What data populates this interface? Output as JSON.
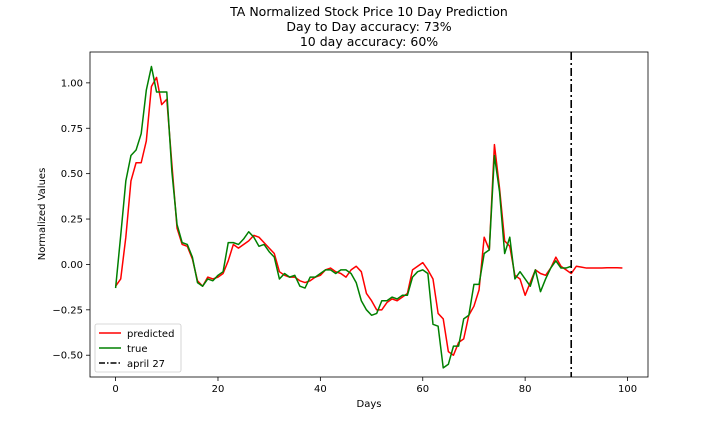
{
  "chart_data": {
    "type": "line",
    "title_lines": [
      "TA Normalized Stock Price 10 Day Prediction",
      "Day to Day accuracy: 73%",
      "10 day accuracy: 60%"
    ],
    "xlabel": "Days",
    "ylabel": "Normalized Values",
    "xlim": [
      -5,
      104
    ],
    "ylim": [
      -0.62,
      1.17
    ],
    "xticks": [
      0,
      20,
      40,
      60,
      80,
      100
    ],
    "yticks": [
      -0.5,
      -0.25,
      0.0,
      0.25,
      0.5,
      0.75,
      1.0
    ],
    "xtick_labels": [
      "0",
      "20",
      "40",
      "60",
      "80",
      "100"
    ],
    "ytick_labels": [
      "−0.50",
      "−0.25",
      "0.00",
      "0.25",
      "0.50",
      "0.75",
      "1.00"
    ],
    "grid": false,
    "legend_position": "lower-left",
    "series": [
      {
        "name": "predicted",
        "color": "#ff0000",
        "x": [
          0,
          1,
          2,
          3,
          4,
          5,
          6,
          7,
          8,
          9,
          10,
          11,
          12,
          13,
          14,
          15,
          16,
          17,
          18,
          19,
          20,
          21,
          22,
          23,
          24,
          25,
          26,
          27,
          28,
          29,
          30,
          31,
          32,
          33,
          34,
          35,
          36,
          37,
          38,
          39,
          40,
          41,
          42,
          43,
          44,
          45,
          46,
          47,
          48,
          49,
          50,
          51,
          52,
          53,
          54,
          55,
          56,
          57,
          58,
          59,
          60,
          61,
          62,
          63,
          64,
          65,
          66,
          67,
          68,
          69,
          70,
          71,
          72,
          73,
          74,
          75,
          76,
          77,
          78,
          79,
          80,
          81,
          82,
          83,
          84,
          85,
          86,
          87,
          88,
          89,
          90,
          91,
          92,
          93,
          94,
          95,
          96,
          97,
          98,
          99
        ],
        "values": [
          -0.12,
          -0.08,
          0.15,
          0.46,
          0.56,
          0.56,
          0.68,
          0.98,
          1.03,
          0.88,
          0.91,
          0.55,
          0.2,
          0.11,
          0.1,
          0.03,
          -0.09,
          -0.12,
          -0.07,
          -0.08,
          -0.07,
          -0.05,
          0.02,
          0.11,
          0.09,
          0.11,
          0.13,
          0.16,
          0.15,
          0.12,
          0.09,
          0.06,
          -0.04,
          -0.06,
          -0.07,
          -0.07,
          -0.09,
          -0.1,
          -0.09,
          -0.07,
          -0.06,
          -0.03,
          -0.02,
          -0.04,
          -0.05,
          -0.07,
          -0.03,
          -0.01,
          -0.04,
          -0.16,
          -0.2,
          -0.25,
          -0.25,
          -0.21,
          -0.19,
          -0.2,
          -0.18,
          -0.16,
          -0.03,
          -0.01,
          0.01,
          -0.03,
          -0.08,
          -0.27,
          -0.3,
          -0.48,
          -0.5,
          -0.43,
          -0.41,
          -0.28,
          -0.23,
          -0.14,
          0.15,
          0.08,
          0.66,
          0.42,
          0.13,
          0.1,
          -0.06,
          -0.08,
          -0.17,
          -0.1,
          -0.03,
          -0.05,
          -0.06,
          -0.02,
          0.04,
          -0.01,
          -0.03,
          -0.05,
          -0.01,
          -0.015,
          -0.02,
          -0.02,
          -0.02,
          -0.02,
          -0.018,
          -0.018,
          -0.018,
          -0.02
        ]
      },
      {
        "name": "true",
        "color": "#008000",
        "x": [
          0,
          1,
          2,
          3,
          4,
          5,
          6,
          7,
          8,
          9,
          10,
          11,
          12,
          13,
          14,
          15,
          16,
          17,
          18,
          19,
          20,
          21,
          22,
          23,
          24,
          25,
          26,
          27,
          28,
          29,
          30,
          31,
          32,
          33,
          34,
          35,
          36,
          37,
          38,
          39,
          40,
          41,
          42,
          43,
          44,
          45,
          46,
          47,
          48,
          49,
          50,
          51,
          52,
          53,
          54,
          55,
          56,
          57,
          58,
          59,
          60,
          61,
          62,
          63,
          64,
          65,
          66,
          67,
          68,
          69,
          70,
          71,
          72,
          73,
          74,
          75,
          76,
          77,
          78,
          79,
          80,
          81,
          82,
          83,
          84,
          85,
          86,
          87,
          88,
          89
        ],
        "values": [
          -0.13,
          0.16,
          0.46,
          0.6,
          0.63,
          0.72,
          0.96,
          1.09,
          0.95,
          0.95,
          0.95,
          0.51,
          0.22,
          0.12,
          0.11,
          0.04,
          -0.1,
          -0.12,
          -0.08,
          -0.09,
          -0.06,
          -0.04,
          0.12,
          0.12,
          0.11,
          0.14,
          0.18,
          0.15,
          0.1,
          0.11,
          0.07,
          0.04,
          -0.08,
          -0.05,
          -0.07,
          -0.06,
          -0.12,
          -0.13,
          -0.07,
          -0.07,
          -0.05,
          -0.03,
          -0.03,
          -0.05,
          -0.03,
          -0.03,
          -0.05,
          -0.1,
          -0.2,
          -0.25,
          -0.28,
          -0.27,
          -0.2,
          -0.2,
          -0.18,
          -0.19,
          -0.17,
          -0.17,
          -0.07,
          -0.04,
          -0.03,
          -0.05,
          -0.33,
          -0.34,
          -0.57,
          -0.55,
          -0.45,
          -0.45,
          -0.3,
          -0.28,
          -0.11,
          -0.11,
          0.06,
          0.08,
          0.6,
          0.4,
          0.06,
          0.15,
          -0.08,
          -0.04,
          -0.08,
          -0.12,
          -0.03,
          -0.15,
          -0.08,
          -0.02,
          0.02,
          -0.02,
          -0.02,
          -0.01
        ]
      }
    ],
    "vline": {
      "x": 89,
      "label": "april 27",
      "color": "#000000",
      "style": "dash-dot"
    }
  }
}
